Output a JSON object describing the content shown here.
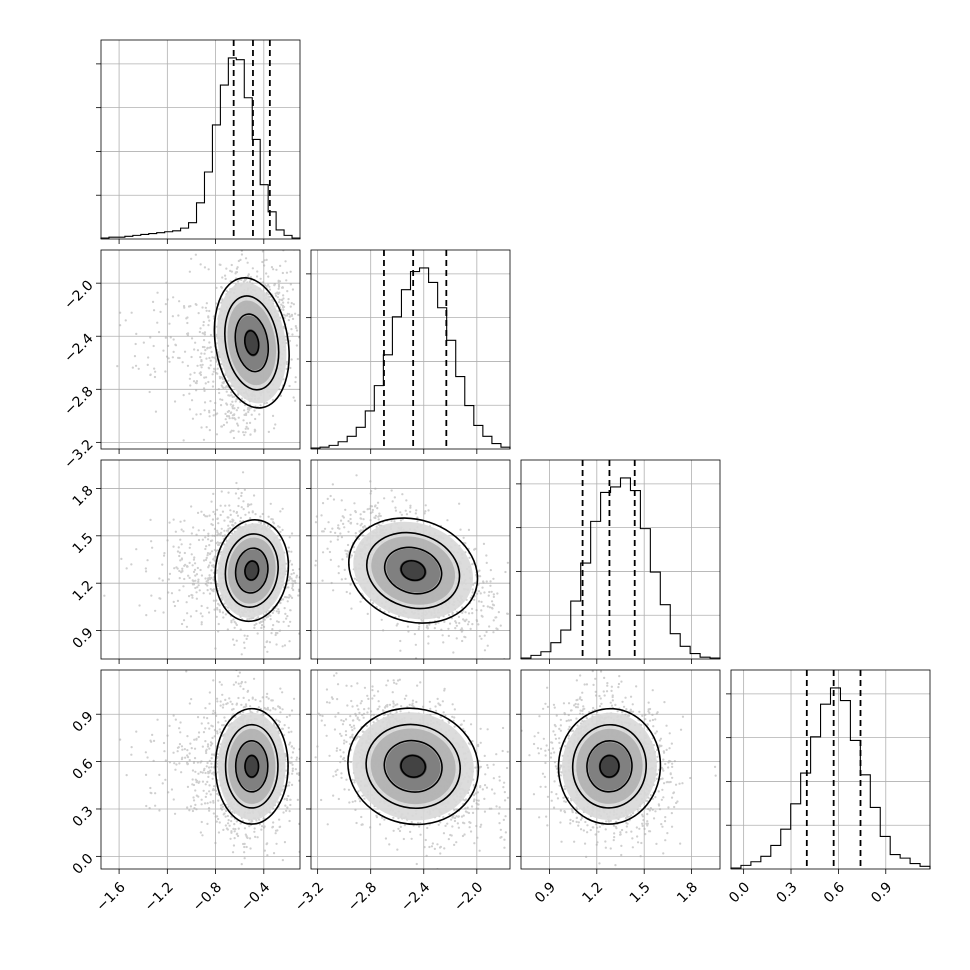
{
  "chart_data": {
    "type": "corner",
    "grid": true,
    "colors": {
      "hist": "#000000",
      "scatter": "#a8a8a8",
      "contour": "#000000",
      "quantile": "#000000"
    },
    "params": [
      {
        "range": [
          -1.75,
          -0.1
        ],
        "ticks": [
          -1.6,
          -1.2,
          -0.8,
          -0.4
        ],
        "tick_labels": [
          "−1.6",
          "−1.2",
          "−0.8",
          "−0.4"
        ],
        "quantiles": [
          -0.65,
          -0.49,
          -0.35
        ],
        "hist": [
          0.005,
          0.01,
          0.01,
          0.015,
          0.02,
          0.025,
          0.03,
          0.035,
          0.04,
          0.045,
          0.06,
          0.09,
          0.2,
          0.37,
          0.63,
          0.85,
          1.0,
          0.99,
          0.78,
          0.55,
          0.3,
          0.15,
          0.05,
          0.02,
          0.005
        ]
      },
      {
        "range": [
          -3.25,
          -1.75
        ],
        "ticks": [
          -3.2,
          -2.8,
          -2.4,
          -2.0
        ],
        "tick_labels": [
          "−3.2",
          "−2.8",
          "−2.4",
          "−2.0"
        ],
        "quantiles": [
          -2.7,
          -2.48,
          -2.23
        ],
        "hist": [
          0.005,
          0.01,
          0.02,
          0.04,
          0.07,
          0.12,
          0.21,
          0.35,
          0.52,
          0.73,
          0.88,
          0.98,
          1.0,
          0.92,
          0.78,
          0.6,
          0.4,
          0.24,
          0.13,
          0.07,
          0.03,
          0.01
        ]
      },
      {
        "range": [
          0.72,
          1.98
        ],
        "ticks": [
          0.9,
          1.2,
          1.5,
          1.8
        ],
        "tick_labels": [
          "0.9",
          "1.2",
          "1.5",
          "1.8"
        ],
        "quantiles": [
          1.11,
          1.28,
          1.44
        ],
        "hist": [
          0.005,
          0.02,
          0.04,
          0.09,
          0.16,
          0.32,
          0.53,
          0.76,
          0.92,
          0.95,
          1.0,
          0.93,
          0.72,
          0.48,
          0.3,
          0.14,
          0.07,
          0.03,
          0.01,
          0.005
        ]
      },
      {
        "range": [
          -0.08,
          1.18
        ],
        "ticks": [
          0.0,
          0.3,
          0.6,
          0.9
        ],
        "tick_labels": [
          "0.0",
          "0.3",
          "0.6",
          "0.9"
        ],
        "quantiles": [
          0.4,
          0.57,
          0.74
        ],
        "hist": [
          0.005,
          0.02,
          0.04,
          0.07,
          0.13,
          0.22,
          0.36,
          0.53,
          0.73,
          0.91,
          1.0,
          0.93,
          0.71,
          0.52,
          0.34,
          0.18,
          0.08,
          0.06,
          0.03,
          0.015
        ]
      }
    ],
    "pairs": [
      {
        "row": 1,
        "col": 0,
        "center": [
          -0.5,
          -2.45
        ],
        "sigma": [
          0.14,
          0.23
        ],
        "rho": 0.25
      },
      {
        "row": 2,
        "col": 0,
        "center": [
          -0.5,
          1.28
        ],
        "sigma": [
          0.14,
          0.15
        ],
        "rho": -0.2
      },
      {
        "row": 2,
        "col": 1,
        "center": [
          -2.48,
          1.28
        ],
        "sigma": [
          0.23,
          0.15
        ],
        "rho": -0.5
      },
      {
        "row": 3,
        "col": 0,
        "center": [
          -0.5,
          0.57
        ],
        "sigma": [
          0.14,
          0.17
        ],
        "rho": 0.0
      },
      {
        "row": 3,
        "col": 1,
        "center": [
          -2.48,
          0.57
        ],
        "sigma": [
          0.23,
          0.17
        ],
        "rho": -0.35
      },
      {
        "row": 3,
        "col": 2,
        "center": [
          1.28,
          0.57
        ],
        "sigma": [
          0.15,
          0.17
        ],
        "rho": -0.1
      }
    ]
  }
}
